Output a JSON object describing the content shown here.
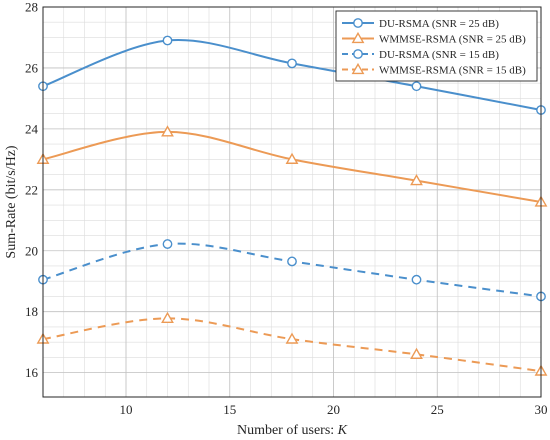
{
  "chart_data": {
    "type": "line",
    "title": "",
    "xlabel": "Number of users: ",
    "xlabel_italic": "K",
    "ylabel": "Sum-Rate (bit/s/Hz)",
    "xlim": [
      6,
      30
    ],
    "ylim": [
      15.2,
      28
    ],
    "xticks": [
      10,
      15,
      20,
      25,
      30
    ],
    "yticks": [
      16,
      18,
      20,
      22,
      24,
      26,
      28
    ],
    "grid": true,
    "minor_grid": true,
    "legend_position": "top-right",
    "series": [
      {
        "name": "DU-RSMA (SNR = 25 dB)",
        "color": "#4a8fcc",
        "dash": "solid",
        "marker": "circle",
        "x": [
          6,
          12,
          18,
          24,
          30
        ],
        "y": [
          25.4,
          26.9,
          26.15,
          25.4,
          24.62
        ]
      },
      {
        "name": "WMMSE-RSMA (SNR = 25 dB)",
        "color": "#ec9a55",
        "dash": "solid",
        "marker": "triangle",
        "x": [
          6,
          12,
          18,
          24,
          30
        ],
        "y": [
          23.0,
          23.9,
          23.0,
          22.3,
          21.6
        ]
      },
      {
        "name": "DU-RSMA (SNR = 15 dB)",
        "color": "#4a8fcc",
        "dash": "dashed",
        "marker": "circle",
        "x": [
          6,
          12,
          18,
          24,
          30
        ],
        "y": [
          19.05,
          20.22,
          19.65,
          19.05,
          18.5
        ]
      },
      {
        "name": "WMMSE-RSMA (SNR = 15 dB)",
        "color": "#ec9a55",
        "dash": "dashed",
        "marker": "triangle",
        "x": [
          6,
          12,
          18,
          24,
          30
        ],
        "y": [
          17.1,
          17.78,
          17.1,
          16.6,
          16.05
        ]
      }
    ]
  }
}
